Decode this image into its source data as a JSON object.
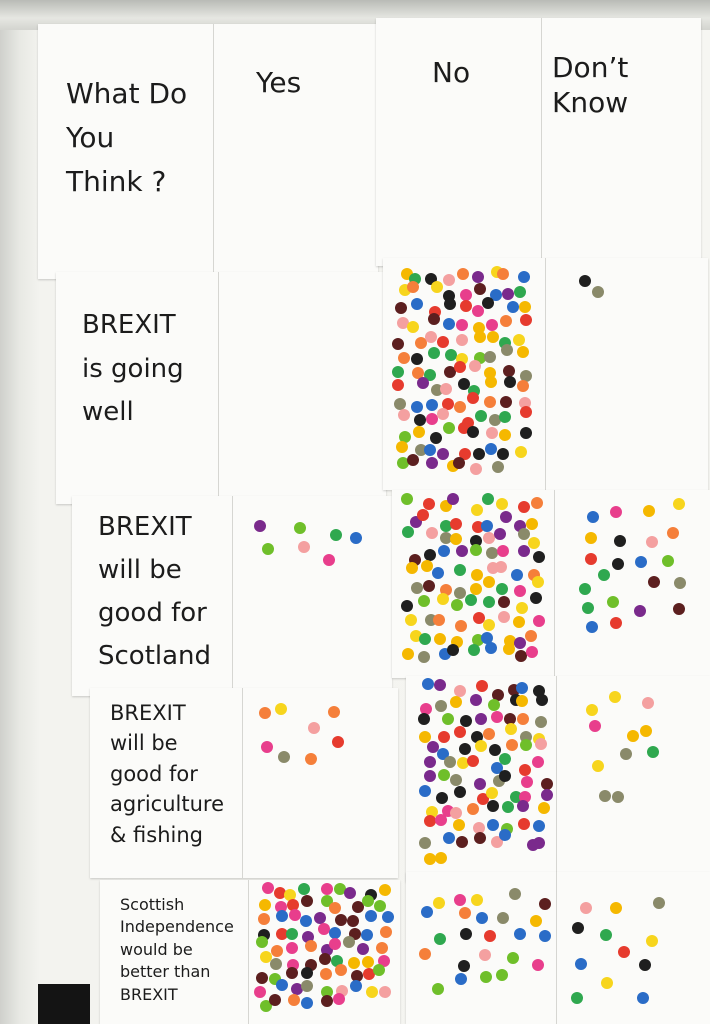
{
  "header": {
    "question": "What Do\nYou\nThink ?",
    "col_yes": "Yes",
    "col_no": "No",
    "col_dont_know": "Don’t\nKnow"
  },
  "rows": [
    {
      "statement": "BREXIT\nis going\nwell"
    },
    {
      "statement": "BREXIT\nwill be\ngood for\nScotland"
    },
    {
      "statement": "BREXIT\nwill be\ngood for\nagriculture\n& fishing"
    },
    {
      "statement": "Scottish\nIndependence\nwould be\nbetter than\nBREXIT"
    }
  ],
  "colors": {
    "sticker_palette": [
      "#e63b2e",
      "#f5b800",
      "#2fa84f",
      "#7a2a8c",
      "#1f1f1f",
      "#f57f3a",
      "#6fbf2a",
      "#e83e8c",
      "#2a6cc7",
      "#8a8a6a",
      "#f7d51d",
      "#5c1f1f",
      "#f4a0a0"
    ],
    "sheet": "#fbfbf9"
  }
}
